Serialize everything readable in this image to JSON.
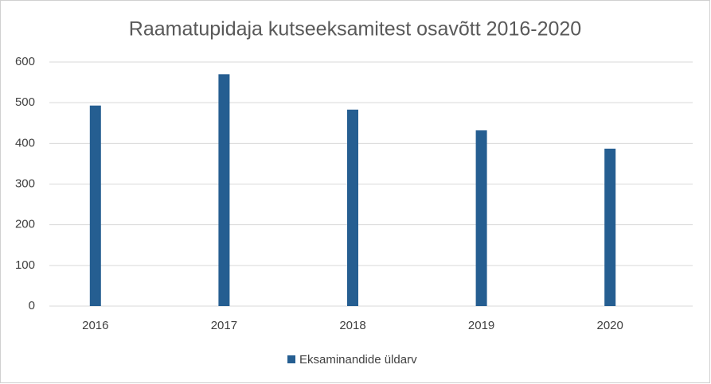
{
  "chart_data": {
    "type": "bar",
    "title": "Raamatupidaja kutseeksamitest osavõtt 2016-2020",
    "categories": [
      "2016",
      "2017",
      "2018",
      "2019",
      "2020"
    ],
    "series": [
      {
        "name": "Eksaminandide üldarv",
        "color": "#255e91",
        "values": [
          493,
          570,
          483,
          432,
          387
        ]
      }
    ],
    "ylim": [
      0,
      600
    ],
    "yticks": [
      0,
      100,
      200,
      300,
      400,
      500,
      600
    ],
    "grid": true,
    "legend": "bottom"
  }
}
